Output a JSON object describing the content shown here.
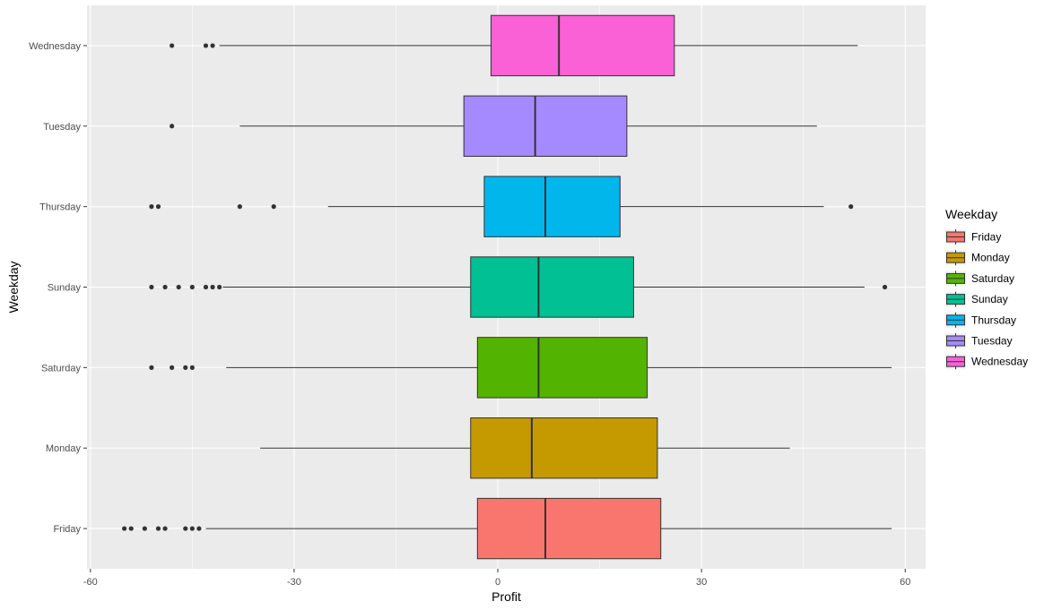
{
  "chart_data": {
    "type": "boxplot",
    "orientation": "horizontal",
    "xlabel": "Profit",
    "ylabel": "Weekday",
    "xlim": [
      -60.5,
      63
    ],
    "x_ticks": [
      -60,
      -30,
      0,
      30,
      60
    ],
    "x_tick_labels": [
      "-60",
      "-30",
      "0",
      "30",
      "60"
    ],
    "categories": [
      "Friday",
      "Monday",
      "Saturday",
      "Sunday",
      "Thursday",
      "Tuesday",
      "Wednesday"
    ],
    "grid": true,
    "legend": {
      "title": "Weekday",
      "position": "right",
      "entries": [
        "Friday",
        "Monday",
        "Saturday",
        "Sunday",
        "Thursday",
        "Tuesday",
        "Wednesday"
      ]
    },
    "series": [
      {
        "name": "Friday",
        "color": "#F8766D",
        "whisker_low": -43.0,
        "q1": -3.0,
        "median": 7.0,
        "q3": 24.0,
        "whisker_high": 58.0,
        "outliers": [
          -55.0,
          -54.0,
          -52.0,
          -50.0,
          -49.0,
          -46.0,
          -45.0,
          -44.0
        ]
      },
      {
        "name": "Monday",
        "color": "#C49A00",
        "whisker_low": -35.0,
        "q1": -4.0,
        "median": 5.0,
        "q3": 23.5,
        "whisker_high": 43.0,
        "outliers": []
      },
      {
        "name": "Saturday",
        "color": "#53B400",
        "whisker_low": -40.0,
        "q1": -3.0,
        "median": 6.0,
        "q3": 22.0,
        "whisker_high": 58.0,
        "outliers": [
          -51.0,
          -48.0,
          -46.0,
          -45.0
        ]
      },
      {
        "name": "Sunday",
        "color": "#00C094",
        "whisker_low": -40.5,
        "q1": -4.0,
        "median": 6.0,
        "q3": 20.0,
        "whisker_high": 54.0,
        "outliers": [
          -51.0,
          -49.0,
          -47.0,
          -45.0,
          -43.0,
          -42.0,
          -41.0,
          57.0
        ]
      },
      {
        "name": "Thursday",
        "color": "#00B6EB",
        "whisker_low": -25.0,
        "q1": -2.0,
        "median": 7.0,
        "q3": 18.0,
        "whisker_high": 48.0,
        "outliers": [
          -51.0,
          -50.0,
          -38.0,
          -33.0,
          52.0
        ]
      },
      {
        "name": "Tuesday",
        "color": "#A58AFF",
        "whisker_low": -38.0,
        "q1": -5.0,
        "median": 5.5,
        "q3": 19.0,
        "whisker_high": 47.0,
        "outliers": [
          -48.0
        ]
      },
      {
        "name": "Wednesday",
        "color": "#FB61D7",
        "whisker_low": -41.0,
        "q1": -1.0,
        "median": 9.0,
        "q3": 26.0,
        "whisker_high": 53.0,
        "outliers": [
          -48.0,
          -43.0,
          -42.0
        ]
      }
    ]
  }
}
